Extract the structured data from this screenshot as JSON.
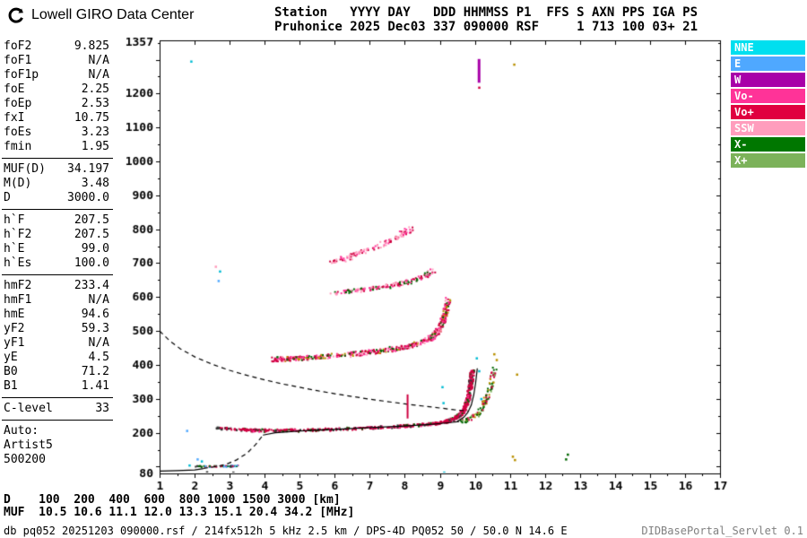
{
  "header": {
    "logo_text": "Lowell GIRO Data Center",
    "station_line1": "Station   YYYY DAY   DDD HHMMSS P1  FFS S AXN PPS IGA PS",
    "station_line2": "Pruhonice 2025 Dec03 337 090000 RSF     1 713 100 03+ 21"
  },
  "parameters": {
    "groups": [
      {
        "rows": [
          {
            "label": "foF2",
            "value": "9.825"
          },
          {
            "label": "foF1",
            "value": "N/A"
          },
          {
            "label": "foF1p",
            "value": "N/A"
          },
          {
            "label": "foE",
            "value": "2.25"
          },
          {
            "label": "foEp",
            "value": "2.53"
          },
          {
            "label": "fxI",
            "value": "10.75"
          },
          {
            "label": "foEs",
            "value": "3.23"
          },
          {
            "label": "fmin",
            "value": "1.95"
          }
        ]
      },
      {
        "rows": [
          {
            "label": "MUF(D)",
            "value": "34.197"
          },
          {
            "label": "M(D)",
            "value": "3.48"
          },
          {
            "label": "D",
            "value": "3000.0"
          }
        ]
      },
      {
        "rows": [
          {
            "label": "h`F",
            "value": "207.5"
          },
          {
            "label": "h`F2",
            "value": "207.5"
          },
          {
            "label": "h`E",
            "value": "99.0"
          },
          {
            "label": "h`Es",
            "value": "100.0"
          }
        ]
      },
      {
        "rows": [
          {
            "label": "hmF2",
            "value": "233.4"
          },
          {
            "label": "hmF1",
            "value": "N/A"
          },
          {
            "label": "hmE",
            "value": "94.6"
          },
          {
            "label": "yF2",
            "value": "59.3"
          },
          {
            "label": "yF1",
            "value": "N/A"
          },
          {
            "label": "yE",
            "value": "4.5"
          },
          {
            "label": "B0",
            "value": "71.2"
          },
          {
            "label": "B1",
            "value": "1.41"
          }
        ]
      },
      {
        "rows": [
          {
            "label": "C-level",
            "value": "33"
          }
        ]
      }
    ],
    "auto_lines": [
      "Auto:",
      "Artist5",
      "500200"
    ]
  },
  "legend": [
    {
      "label": "NNE",
      "color": "#00DFEF"
    },
    {
      "label": "E",
      "color": "#4FA8FF"
    },
    {
      "label": "W",
      "color": "#A800A8"
    },
    {
      "label": "Vo-",
      "color": "#FF3398"
    },
    {
      "label": "Vo+",
      "color": "#E00040"
    },
    {
      "label": "SSW",
      "color": "#FF9DBD"
    },
    {
      "label": "X-",
      "color": "#007700"
    },
    {
      "label": "X+",
      "color": "#7CB25A"
    }
  ],
  "chart_data": {
    "type": "scatter",
    "title": "Pruhonice ionogram 2025 Dec03 337 090000 UT",
    "xlabel": "[MHz]",
    "ylabel": "[km]",
    "xlim": [
      1,
      17
    ],
    "ylim": [
      80,
      1357
    ],
    "grid": false,
    "x_ticks": [
      1,
      2,
      3,
      4,
      5,
      6,
      7,
      8,
      9,
      10,
      11,
      12,
      13,
      14,
      15,
      16,
      17
    ],
    "y_tick_labels": [
      1357,
      1200,
      1100,
      1000,
      900,
      800,
      700,
      600,
      500,
      400,
      300,
      200,
      80
    ],
    "lines": [
      {
        "name": "profile-e-solid",
        "dash": false,
        "points": [
          [
            1.0,
            87
          ],
          [
            1.5,
            88
          ],
          [
            2.0,
            90
          ],
          [
            2.25,
            94
          ]
        ]
      },
      {
        "name": "valley-dashed",
        "dash": true,
        "points": [
          [
            2.25,
            95
          ],
          [
            2.6,
            100
          ],
          [
            2.9,
            107
          ],
          [
            3.2,
            120
          ],
          [
            3.5,
            140
          ],
          [
            3.75,
            166
          ],
          [
            3.95,
            193
          ]
        ]
      },
      {
        "name": "profile-f-solid",
        "dash": false,
        "points": [
          [
            3.95,
            193
          ],
          [
            4.3,
            200
          ],
          [
            5.0,
            205
          ],
          [
            6.0,
            210
          ],
          [
            7.0,
            215
          ],
          [
            8.0,
            220
          ],
          [
            8.8,
            225
          ],
          [
            9.3,
            230
          ],
          [
            9.55,
            233
          ]
        ]
      },
      {
        "name": "cusp-solid",
        "dash": false,
        "points": [
          [
            9.5,
            234
          ],
          [
            9.68,
            245
          ],
          [
            9.8,
            260
          ],
          [
            9.9,
            282
          ],
          [
            9.97,
            312
          ],
          [
            10.02,
            345
          ],
          [
            10.05,
            372
          ],
          [
            10.07,
            390
          ]
        ]
      },
      {
        "name": "muf-transmission-dashed",
        "dash": true,
        "points": [
          [
            1.0,
            500
          ],
          [
            1.3,
            470
          ],
          [
            1.6,
            447
          ],
          [
            2.0,
            424
          ],
          [
            2.5,
            402
          ],
          [
            3.0,
            384
          ],
          [
            3.5,
            369
          ],
          [
            4.0,
            356
          ],
          [
            4.5,
            344
          ],
          [
            5.0,
            334
          ],
          [
            5.5,
            324
          ],
          [
            6.0,
            315
          ],
          [
            6.5,
            307
          ],
          [
            7.0,
            299
          ],
          [
            7.5,
            292
          ],
          [
            8.0,
            285
          ],
          [
            8.5,
            279
          ],
          [
            9.0,
            273
          ],
          [
            9.4,
            268
          ],
          [
            9.8,
            264
          ]
        ]
      }
    ],
    "traces": [
      {
        "name": "f-trace-lead",
        "count": 30,
        "size": 2,
        "jitter_f": 0.06,
        "jitter_h": 4,
        "colors": [
          "#CF0040",
          "#CF0040",
          "#333333"
        ],
        "path": [
          [
            2.6,
            213
          ],
          [
            2.9,
            211
          ],
          [
            3.3,
            209
          ]
        ]
      },
      {
        "name": "f-trace-ordinary",
        "count": 680,
        "size": 2,
        "jitter_f": 0.06,
        "jitter_h": 4,
        "colors": [
          "#CF0040",
          "#CF0040",
          "#CF0040",
          "#CF0040",
          "#CF0040",
          "#CF0040",
          "#006600",
          "#333333",
          "#FF3398"
        ],
        "path": [
          [
            3.3,
            209
          ],
          [
            3.7,
            207
          ],
          [
            4.2,
            206
          ],
          [
            5.0,
            207
          ],
          [
            6.0,
            210
          ],
          [
            7.0,
            214
          ],
          [
            7.8,
            218
          ],
          [
            8.4,
            222
          ],
          [
            8.9,
            227
          ],
          [
            9.2,
            233
          ],
          [
            9.45,
            242
          ],
          [
            9.6,
            254
          ],
          [
            9.72,
            272
          ],
          [
            9.8,
            295
          ],
          [
            9.86,
            325
          ],
          [
            9.9,
            355
          ],
          [
            9.93,
            385
          ]
        ]
      },
      {
        "name": "f-trace-xmode-cusp",
        "count": 120,
        "size": 2,
        "jitter_f": 0.07,
        "jitter_h": 6,
        "colors": [
          "#006600",
          "#006600",
          "#7CB25A",
          "#B99000",
          "#CF0040"
        ],
        "path": [
          [
            9.55,
            232
          ],
          [
            9.85,
            240
          ],
          [
            10.05,
            252
          ],
          [
            10.2,
            270
          ],
          [
            10.32,
            295
          ],
          [
            10.42,
            325
          ],
          [
            10.5,
            360
          ],
          [
            10.56,
            395
          ]
        ]
      },
      {
        "name": "second-hop",
        "count": 520,
        "size": 2,
        "jitter_f": 0.08,
        "jitter_h": 7,
        "colors": [
          "#CF0040",
          "#CF0040",
          "#CF0040",
          "#FF3398",
          "#FF3398",
          "#006600",
          "#FF9DBD",
          "#B99000"
        ],
        "path": [
          [
            4.25,
            416
          ],
          [
            4.7,
            418
          ],
          [
            5.2,
            421
          ],
          [
            5.8,
            425
          ],
          [
            6.4,
            430
          ],
          [
            7.0,
            437
          ],
          [
            7.6,
            446
          ],
          [
            8.1,
            455
          ],
          [
            8.5,
            466
          ],
          [
            8.8,
            482
          ],
          [
            9.0,
            505
          ],
          [
            9.1,
            532
          ],
          [
            9.18,
            562
          ],
          [
            9.24,
            595
          ]
        ]
      },
      {
        "name": "third-hop",
        "count": 160,
        "size": 2,
        "jitter_f": 0.09,
        "jitter_h": 6,
        "colors": [
          "#FF3398",
          "#CF0040",
          "#FF9DBD",
          "#006600"
        ],
        "path": [
          [
            5.95,
            612
          ],
          [
            6.4,
            617
          ],
          [
            6.9,
            623
          ],
          [
            7.4,
            630
          ],
          [
            7.9,
            639
          ],
          [
            8.3,
            650
          ],
          [
            8.6,
            663
          ],
          [
            8.8,
            680
          ]
        ]
      },
      {
        "name": "upper-hop",
        "count": 120,
        "size": 2,
        "jitter_f": 0.1,
        "jitter_h": 7,
        "colors": [
          "#FF3398",
          "#FF9DBD",
          "#CF0040"
        ],
        "path": [
          [
            5.9,
            700
          ],
          [
            6.3,
            714
          ],
          [
            6.7,
            728
          ],
          [
            7.1,
            744
          ],
          [
            7.5,
            762
          ],
          [
            7.85,
            780
          ],
          [
            8.15,
            800
          ]
        ]
      },
      {
        "name": "e-trace",
        "count": 50,
        "size": 2,
        "jitter_f": 0.05,
        "jitter_h": 2,
        "colors": [
          "#CF0040",
          "#333333",
          "#006600",
          "#4FA8FF"
        ],
        "path": [
          [
            2.05,
            100
          ],
          [
            2.4,
            100
          ],
          [
            2.7,
            101
          ],
          [
            3.0,
            101
          ],
          [
            3.2,
            102
          ]
        ]
      }
    ],
    "bars": [
      {
        "f": 10.12,
        "h_from": 1232,
        "h_to": 1302,
        "w": 3,
        "color": "#A800A8"
      },
      {
        "f": 8.08,
        "h_from": 242,
        "h_to": 313,
        "w": 2,
        "color": "#CF0040"
      }
    ],
    "noise_points": [
      [
        1.9,
        1295,
        "#00BCD4"
      ],
      [
        11.12,
        1286,
        "#B99000"
      ],
      [
        10.12,
        1218,
        "#CF0040"
      ],
      [
        2.72,
        676,
        "#00BCD4"
      ],
      [
        2.68,
        648,
        "#4FA8FF"
      ],
      [
        2.6,
        690,
        "#FF9DBD"
      ],
      [
        2.08,
        122,
        "#4FA8FF"
      ],
      [
        2.2,
        116,
        "#00BCD4"
      ],
      [
        1.85,
        104,
        "#00BCD4"
      ],
      [
        1.78,
        206,
        "#4FA8FF"
      ],
      [
        9.12,
        83,
        "#00BCD4"
      ],
      [
        9.1,
        288,
        "#00BCD4"
      ],
      [
        9.07,
        335,
        "#00BCD4"
      ],
      [
        10.05,
        420,
        "#00BCD4"
      ],
      [
        10.12,
        382,
        "#00BCD4"
      ],
      [
        10.18,
        300,
        "#00BCD4"
      ],
      [
        10.55,
        432,
        "#B99000"
      ],
      [
        10.62,
        415,
        "#B99000"
      ],
      [
        11.2,
        372,
        "#B99000"
      ],
      [
        11.08,
        130,
        "#B99000"
      ],
      [
        11.14,
        120,
        "#B99000"
      ],
      [
        12.6,
        122,
        "#006600"
      ],
      [
        12.65,
        136,
        "#006600"
      ],
      [
        3.1,
        83,
        "#333333"
      ],
      [
        2.35,
        84,
        "#333333"
      ]
    ]
  },
  "muf_table": {
    "d_row": "D    100  200  400  600  800 1000 1500 3000 [km]",
    "muf_row": "MUF  10.5 10.6 11.1 12.0 13.3 15.1 20.4 34.2 [MHz]"
  },
  "footer": {
    "record_info": "db pq052 20251203 090000.rsf / 214fx512h 5 kHz 2.5 km / DPS-4D PQ052 50 / 50.0 N 14.6 E",
    "servlet": "DIDBasePortal_Servlet 0.1"
  }
}
